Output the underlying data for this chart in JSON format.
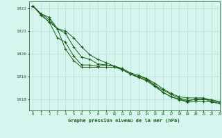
{
  "title": "Graphe pression niveau de la mer (hPa)",
  "background_color": "#d5f5ee",
  "grid_color": "#b8ddd8",
  "line_color": "#1a5c1a",
  "xlim": [
    -0.5,
    23
  ],
  "ylim": [
    1017.5,
    1022.3
  ],
  "yticks": [
    1018,
    1019,
    1020,
    1021,
    1022
  ],
  "xticks": [
    0,
    1,
    2,
    3,
    4,
    5,
    6,
    7,
    8,
    9,
    10,
    11,
    12,
    13,
    14,
    15,
    16,
    17,
    18,
    19,
    20,
    21,
    22,
    23
  ],
  "series": [
    [
      1022.1,
      1021.7,
      1021.4,
      1021.1,
      1020.2,
      1019.7,
      1019.4,
      1019.4,
      1019.4,
      1019.4,
      1019.4,
      1019.3,
      1019.1,
      1019.0,
      1018.9,
      1018.6,
      1018.3,
      1018.1,
      1018.0,
      1017.9,
      1018.0,
      1018.0,
      1017.9,
      1017.8
    ],
    [
      1022.1,
      1021.7,
      1021.4,
      1020.7,
      1020.5,
      1019.9,
      1019.5,
      1019.5,
      1019.45,
      1019.5,
      1019.45,
      1019.35,
      1019.15,
      1019.05,
      1018.9,
      1018.7,
      1018.45,
      1018.25,
      1018.1,
      1018.05,
      1018.05,
      1018.05,
      1017.95,
      1017.85
    ],
    [
      1022.1,
      1021.75,
      1021.6,
      1021.1,
      1020.9,
      1020.3,
      1019.85,
      1019.75,
      1019.55,
      1019.5,
      1019.45,
      1019.3,
      1019.1,
      1018.95,
      1018.85,
      1018.6,
      1018.4,
      1018.2,
      1018.05,
      1017.95,
      1017.97,
      1017.98,
      1017.97,
      1017.88
    ],
    [
      1022.1,
      1021.75,
      1021.5,
      1021.1,
      1021.0,
      1020.7,
      1020.3,
      1019.95,
      1019.75,
      1019.6,
      1019.45,
      1019.3,
      1019.1,
      1018.95,
      1018.8,
      1018.55,
      1018.3,
      1018.1,
      1017.97,
      1017.87,
      1017.88,
      1017.9,
      1017.87,
      1017.8
    ]
  ]
}
